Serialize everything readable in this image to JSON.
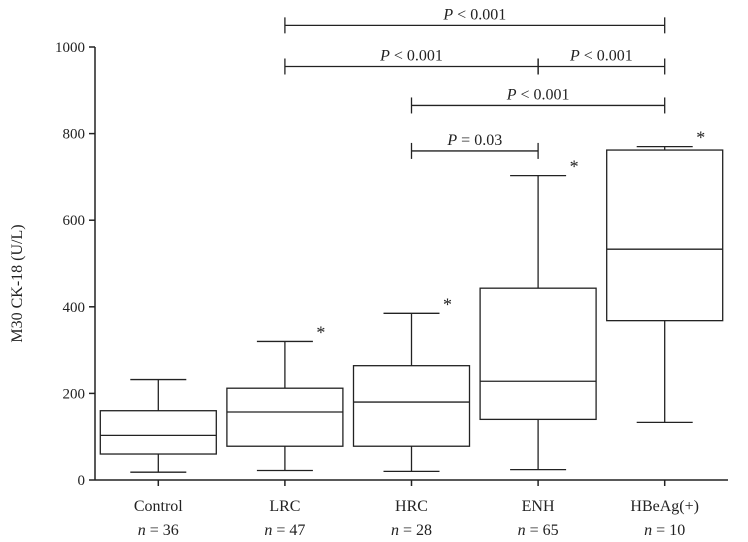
{
  "chart_data": {
    "type": "box",
    "ylabel": "M30 CK-18 (U/L)",
    "ylim": [
      0,
      1000
    ],
    "yticks": [
      0,
      200,
      400,
      600,
      800,
      1000
    ],
    "groups": [
      {
        "name": "Control",
        "n_label": "n = 36",
        "whisker_low": 18,
        "q1": 60,
        "median": 103,
        "q3": 160,
        "whisker_high": 232,
        "outlier_marker": ""
      },
      {
        "name": "LRC",
        "n_label": "n = 47",
        "whisker_low": 22,
        "q1": 78,
        "median": 157,
        "q3": 212,
        "whisker_high": 320,
        "outlier_marker": "*"
      },
      {
        "name": "HRC",
        "n_label": "n = 28",
        "whisker_low": 20,
        "q1": 78,
        "median": 180,
        "q3": 264,
        "whisker_high": 385,
        "outlier_marker": "*"
      },
      {
        "name": "ENH",
        "n_label": "n = 65",
        "whisker_low": 24,
        "q1": 140,
        "median": 228,
        "q3": 443,
        "whisker_high": 703,
        "outlier_marker": "*"
      },
      {
        "name": "HBeAg(+)",
        "n_label": "n = 10",
        "whisker_low": 133,
        "q1": 368,
        "median": 533,
        "q3": 762,
        "whisker_high": 770,
        "outlier_marker": "*"
      }
    ],
    "comparisons": [
      {
        "from": "LRC",
        "to": "HBeAg(+)",
        "label": "P < 0.001",
        "level": 1050
      },
      {
        "from": "LRC",
        "to": "ENH",
        "label": "P < 0.001",
        "level": 955
      },
      {
        "from": "ENH",
        "to": "HBeAg(+)",
        "label": "P < 0.001",
        "level": 955
      },
      {
        "from": "HRC",
        "to": "HBeAg(+)",
        "label": "P < 0.001",
        "level": 865
      },
      {
        "from": "HRC",
        "to": "ENH",
        "label": "P = 0.03",
        "level": 760
      }
    ]
  }
}
